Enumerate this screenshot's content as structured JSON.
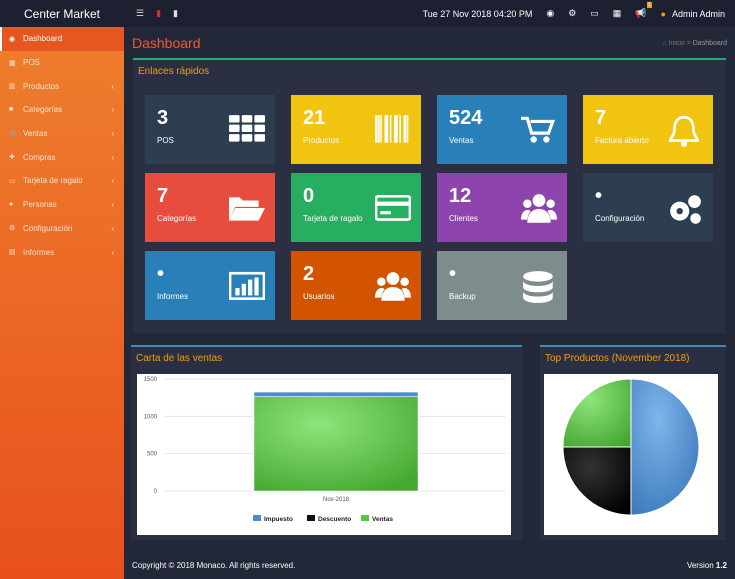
{
  "topbar": {
    "brand": "Center Market",
    "datetime": "Tue 27 Nov 2018 04:20 PM",
    "user": "Admin Admin",
    "notification_count": "1"
  },
  "sidebar": {
    "items": [
      {
        "label": "Dashboard",
        "icon": "dashboard-icon",
        "active": true
      },
      {
        "label": "POS",
        "icon": "grid-icon"
      },
      {
        "label": "Productos",
        "icon": "barcode-icon"
      },
      {
        "label": "Categorías",
        "icon": "folder-icon"
      },
      {
        "label": "Ventas",
        "icon": "cart-icon"
      },
      {
        "label": "Compras",
        "icon": "plus-icon"
      },
      {
        "label": "Tarjeta de ragalo",
        "icon": "credit-card-icon"
      },
      {
        "label": "Personas",
        "icon": "users-icon"
      },
      {
        "label": "Configuración",
        "icon": "gears-icon"
      },
      {
        "label": "Informes",
        "icon": "chart-icon"
      }
    ]
  },
  "header": {
    "title": "Dashboard",
    "breadcrumb": [
      "Inicio",
      "Dashboard"
    ]
  },
  "quick_links": {
    "title": "Enlaces rápidos",
    "tiles": [
      {
        "value": "3",
        "label": "POS",
        "color": "#2c3e50",
        "icon": "grid-icon"
      },
      {
        "value": "21",
        "label": "Productos",
        "color": "#f1c40f",
        "icon": "barcode-icon"
      },
      {
        "value": "524",
        "label": "Ventas",
        "color": "#2980b9",
        "icon": "cart-icon"
      },
      {
        "value": "7",
        "label": "Factura abierto",
        "color": "#f1c40f",
        "icon": "bell-icon"
      },
      {
        "value": "7",
        "label": "Categorías",
        "color": "#e74c3c",
        "icon": "folder-icon"
      },
      {
        "value": "0",
        "label": "Tarjeta de ragalo",
        "color": "#27ae60",
        "icon": "credit-card-icon"
      },
      {
        "value": "12",
        "label": "Clientes",
        "color": "#8e44ad",
        "icon": "users-icon"
      },
      {
        "value": "•",
        "label": "Configuración",
        "color": "#2c3e50",
        "icon": "gears-icon"
      },
      {
        "value": "•",
        "label": "Informes",
        "color": "#2980b9",
        "icon": "chart-icon"
      },
      {
        "value": "2",
        "label": "Usuarios",
        "color": "#d35400",
        "icon": "users-icon"
      },
      {
        "value": "•",
        "label": "Backup",
        "color": "#7f8c8d",
        "icon": "database-icon"
      }
    ]
  },
  "sales_panel": {
    "title": "Carta de las ventas"
  },
  "top_panel": {
    "title": "Top Productos (November 2018)"
  },
  "chart_data": [
    {
      "type": "bar",
      "stacked": true,
      "categories": [
        "Nov-2018"
      ],
      "ylim": [
        0,
        1500
      ],
      "yticks": [
        "0",
        "500",
        "1000",
        "1500"
      ],
      "grid": true,
      "legend": "bottom",
      "series": [
        {
          "name": "Impuesto",
          "values": [
            60
          ],
          "color": "#4a8cd0"
        },
        {
          "name": "Descuento",
          "values": [
            0
          ],
          "color": "#111111"
        },
        {
          "name": "Ventas",
          "values": [
            1265
          ],
          "color": "#5cc24a"
        }
      ]
    },
    {
      "type": "pie",
      "values": [
        50,
        25,
        25
      ],
      "colors": [
        "#4a8cd0",
        "#111111",
        "#5cc24a"
      ]
    }
  ],
  "footer": {
    "copyright": "Copyright © 2018 Monaco. All rights reserved.",
    "version_label": "Version",
    "version": "1.2"
  }
}
